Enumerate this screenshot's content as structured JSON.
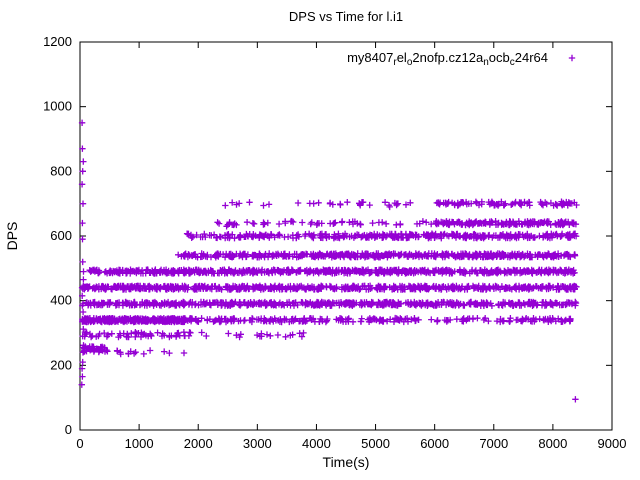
{
  "page": {
    "background": "#ffffff",
    "plot_border_color": "#000000",
    "text_color": "#000000"
  },
  "chart_data": {
    "type": "scatter",
    "title": "DPS vs Time for l.i1",
    "xlabel": "Time(s)",
    "ylabel": "DPS",
    "xlim": [
      0,
      9000
    ],
    "ylim": [
      0,
      1200
    ],
    "xticks": [
      0,
      1000,
      2000,
      3000,
      4000,
      5000,
      6000,
      7000,
      8000,
      9000
    ],
    "yticks": [
      0,
      200,
      400,
      600,
      800,
      1000,
      1200
    ],
    "grid": false,
    "legend_position": "top-right-inside",
    "marker": "plus",
    "series_color": "#9400D3",
    "legend_parts": [
      {
        "text": "my8407",
        "sub": false
      },
      {
        "text": "r",
        "sub": true
      },
      {
        "text": "el",
        "sub": false
      },
      {
        "text": "o",
        "sub": true
      },
      {
        "text": "2nofp.cz12a",
        "sub": false
      },
      {
        "text": "n",
        "sub": true
      },
      {
        "text": "ocb",
        "sub": false
      },
      {
        "text": "c",
        "sub": true
      },
      {
        "text": "24r64",
        "sub": false
      }
    ],
    "bands": [
      {
        "y": 490,
        "jitter": 6,
        "segments": [
          [
            150,
            8400,
            650
          ]
        ]
      },
      {
        "y": 440,
        "jitter": 6,
        "segments": [
          [
            30,
            8400,
            650
          ]
        ]
      },
      {
        "y": 390,
        "jitter": 6,
        "segments": [
          [
            30,
            8400,
            580
          ]
        ]
      },
      {
        "y": 340,
        "jitter": 6,
        "segments": [
          [
            30,
            1800,
            320
          ],
          [
            1800,
            5600,
            160
          ],
          [
            5600,
            8300,
            80
          ]
        ]
      },
      {
        "y": 540,
        "jitter": 6,
        "segments": [
          [
            1650,
            4000,
            130
          ],
          [
            4000,
            8400,
            380
          ]
        ]
      },
      {
        "y": 600,
        "jitter": 7,
        "segments": [
          [
            1750,
            4000,
            85
          ],
          [
            4000,
            8400,
            270
          ]
        ]
      },
      {
        "y": 640,
        "jitter": 6,
        "segments": [
          [
            2300,
            6000,
            55
          ],
          [
            6000,
            8400,
            170
          ]
        ]
      },
      {
        "y": 700,
        "jitter": 6,
        "segments": [
          [
            2400,
            6000,
            28
          ],
          [
            6000,
            8400,
            95
          ]
        ]
      },
      {
        "y": 295,
        "jitter": 8,
        "segments": [
          [
            60,
            1800,
            55
          ],
          [
            1800,
            3800,
            22
          ]
        ]
      },
      {
        "y": 250,
        "jitter": 9,
        "segments": [
          [
            50,
            450,
            45
          ]
        ]
      },
      {
        "y": 240,
        "jitter": 6,
        "segments": [
          [
            450,
            1600,
            14
          ]
        ]
      }
    ],
    "extra_points": [
      [
        30,
        140
      ],
      [
        40,
        165
      ],
      [
        35,
        190
      ],
      [
        45,
        210
      ],
      [
        50,
        240
      ],
      [
        60,
        262
      ],
      [
        45,
        290
      ],
      [
        55,
        312
      ],
      [
        40,
        340
      ],
      [
        52,
        365
      ],
      [
        50,
        390
      ],
      [
        38,
        415
      ],
      [
        35,
        440
      ],
      [
        58,
        465
      ],
      [
        60,
        490
      ],
      [
        45,
        520
      ],
      [
        42,
        590
      ],
      [
        40,
        640
      ],
      [
        50,
        700
      ],
      [
        35,
        760
      ],
      [
        45,
        800
      ],
      [
        55,
        830
      ],
      [
        40,
        870
      ],
      [
        35,
        950
      ],
      [
        1760,
        238
      ],
      [
        2480,
        630
      ],
      [
        4230,
        700
      ],
      [
        4740,
        695
      ],
      [
        5240,
        690
      ],
      [
        5360,
        700
      ],
      [
        8380,
        95
      ]
    ]
  }
}
